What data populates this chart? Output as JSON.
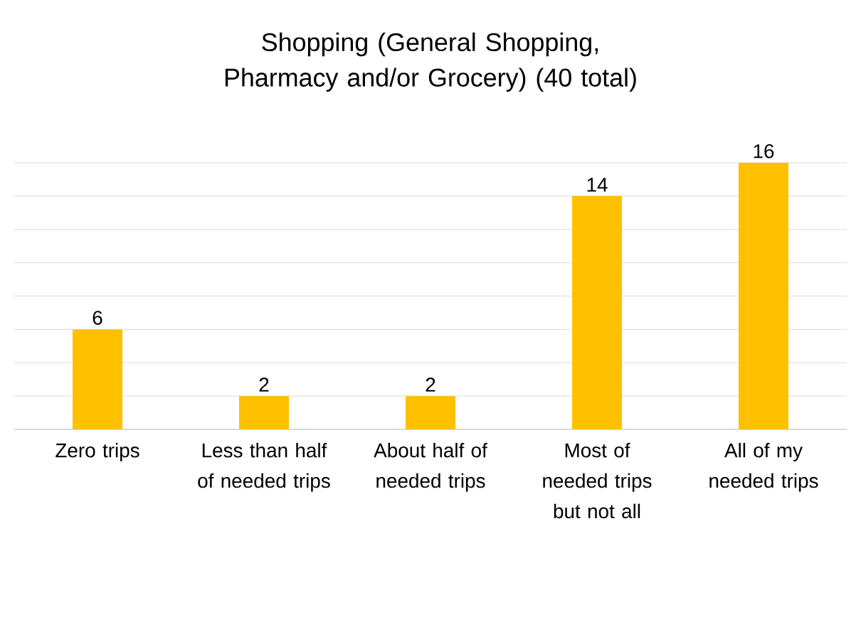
{
  "chart_data": {
    "type": "bar",
    "title": "Shopping (General Shopping, Pharmacy and/or Grocery) (40 total)",
    "categories": [
      "Zero trips",
      "Less than half of needed trips",
      "About half of needed trips",
      "Most of needed trips but not all",
      "All of my needed trips"
    ],
    "values": [
      6,
      2,
      2,
      14,
      16
    ],
    "color": "#ffc000",
    "data_labels": true,
    "tick_labels": "x",
    "grid": "y"
  }
}
